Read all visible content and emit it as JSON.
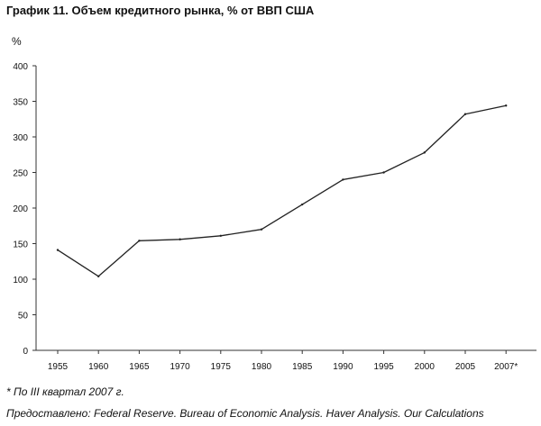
{
  "chart_data": {
    "type": "line",
    "title": "График 11. Объем кредитного рынка, % от ВВП США",
    "ylabel": "%",
    "xlabel": "",
    "x": [
      1955,
      1960,
      1965,
      1970,
      1975,
      1980,
      1985,
      1990,
      1995,
      2000,
      2005,
      2007
    ],
    "x_tick_labels": [
      "1955",
      "1960",
      "1965",
      "1970",
      "1975",
      "1980",
      "1985",
      "1990",
      "1995",
      "2000",
      "2005",
      "2007*"
    ],
    "series": [
      {
        "values": [
          141,
          104,
          154,
          156,
          161,
          170,
          205,
          240,
          250,
          278,
          332,
          344
        ]
      }
    ],
    "ylim": [
      0,
      400
    ],
    "y_ticks": [
      0,
      50,
      100,
      150,
      200,
      250,
      300,
      350,
      400
    ],
    "grid": false,
    "line_color": "#222222"
  },
  "footnote": "* По III квартал 2007 г.",
  "source": "Предоставлено: Federal Reserve. Bureau of Economic Analysis. Haver Analysis. Our Calculations"
}
